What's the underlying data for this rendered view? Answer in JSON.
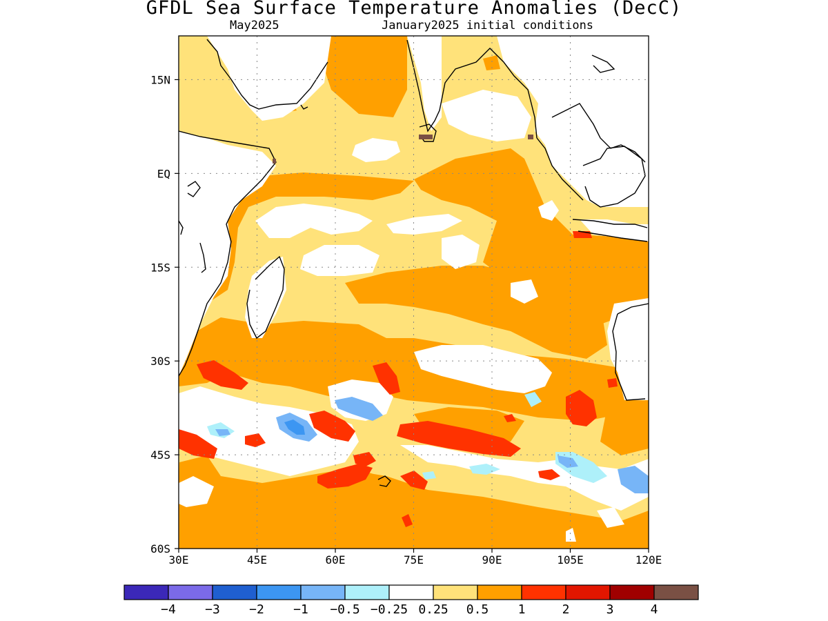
{
  "title": "GFDL Sea Surface Temperature Anomalies (DecC)",
  "subtitle_left": "May2025",
  "subtitle_right": "January2025 initial conditions",
  "map": {
    "lon_range": [
      30,
      120
    ],
    "lat_range": [
      -60,
      22
    ],
    "x_ticks": [
      "30E",
      "45E",
      "60E",
      "75E",
      "90E",
      "105E",
      "120E"
    ],
    "y_ticks": [
      "15N",
      "EQ",
      "15S",
      "30S",
      "45S",
      "60S"
    ],
    "grid": "dotted",
    "land_color": "#ffffff"
  },
  "colorbar": {
    "colors": [
      "#3b28b8",
      "#7b6ae8",
      "#1f5fd0",
      "#3c96f2",
      "#77b5f7",
      "#aef0fa",
      "#ffffff",
      "#ffe27a",
      "#ffa000",
      "#ff3200",
      "#e21600",
      "#a00000",
      "#7a5044"
    ],
    "labels": [
      "−4",
      "−3",
      "−2",
      "−1",
      "−0.5",
      "−0.25",
      "0.25",
      "0.5",
      "1",
      "2",
      "3",
      "4"
    ]
  }
}
